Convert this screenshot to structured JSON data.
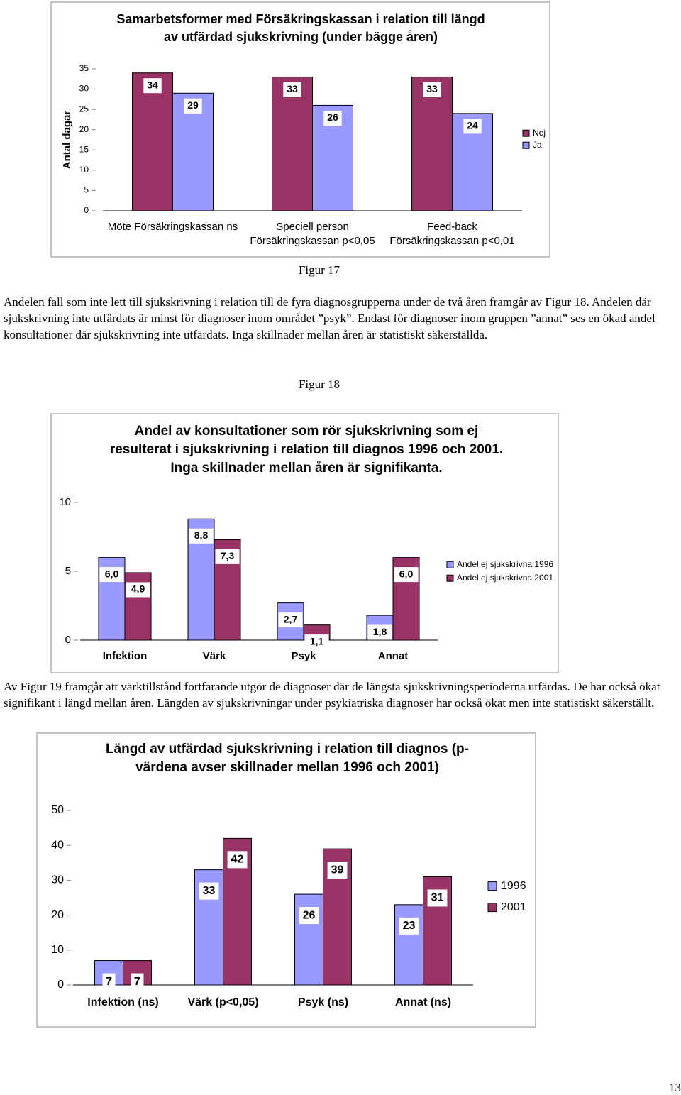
{
  "chart_data": [
    {
      "type": "bar",
      "title": "Samarbetsformer med Försäkringskassan i relation till längd av utfärdad sjukskrivning (under bägge åren)",
      "ylabel": "Antal dagar",
      "categories": [
        "Möte Försäkringskassan ns",
        "Speciell person Försäkringskassan p<0,05",
        "Feed-back Försäkringskassan p<0,01"
      ],
      "series": [
        {
          "name": "Nej",
          "color": "#993366",
          "values": [
            34,
            33,
            33
          ]
        },
        {
          "name": "Ja",
          "color": "#9999ff",
          "values": [
            29,
            26,
            24
          ]
        }
      ],
      "ylim": [
        0,
        35
      ],
      "yticks": [
        0,
        5,
        10,
        15,
        20,
        25,
        30,
        35
      ],
      "legend": "right"
    },
    {
      "type": "bar",
      "title": "Andel av konsultationer som rör sjukskrivning som ej resulterat i sjukskrivning i relation till diagnos 1996 och 2001. Inga skillnader mellan åren är signifikanta.",
      "categories": [
        "Infektion",
        "Värk",
        "Psyk",
        "Annat"
      ],
      "series": [
        {
          "name": "Andel ej sjukskrivna 1996",
          "color": "#9999ff",
          "values": [
            6.0,
            8.8,
            2.7,
            1.8
          ],
          "value_labels": [
            "6,0",
            "8,8",
            "2,7",
            "1,8"
          ]
        },
        {
          "name": "Andel ej sjukskrivna 2001",
          "color": "#993366",
          "values": [
            4.9,
            7.3,
            1.1,
            6.0
          ],
          "value_labels": [
            "4,9",
            "7,3",
            "1,1",
            "6,0"
          ]
        }
      ],
      "ylim": [
        0,
        10
      ],
      "yticks": [
        0,
        5,
        10
      ],
      "legend": "right"
    },
    {
      "type": "bar",
      "title": "Längd av utfärdad sjukskrivning i relation till diagnos (p-värdena avser skillnader mellan 1996 och 2001)",
      "categories": [
        "Infektion (ns)",
        "Värk (p<0,05)",
        "Psyk (ns)",
        "Annat (ns)"
      ],
      "series": [
        {
          "name": "1996",
          "color": "#9999ff",
          "values": [
            7,
            33,
            26,
            23
          ]
        },
        {
          "name": "2001",
          "color": "#993366",
          "values": [
            7,
            42,
            39,
            31
          ]
        }
      ],
      "ylim": [
        0,
        50
      ],
      "yticks": [
        0,
        10,
        20,
        30,
        40,
        50
      ],
      "legend": "right"
    }
  ],
  "captions": [
    "Figur 17",
    "Figur 18"
  ],
  "paragraphs": [
    "Andelen fall som inte lett till sjukskrivning i relation till de fyra diagnosgrupperna under de två åren framgår av Figur 18. Andelen där sjukskrivning inte utfärdats är minst för diagnoser inom området ”psyk”. Endast för diagnoser inom gruppen ”annat” ses en ökad andel konsultationer där sjukskrivning inte utfärdats. Inga skillnader mellan åren är statistiskt säkerställda.",
    "Av Figur 19 framgår att värktillstånd fortfarande utgör de diagnoser där de längsta sjukskrivningsperioderna utfärdas. De har också ökat signifikant i längd mellan åren. Längden av sjukskrivningar under psykiatriska diagnoser har också ökat men inte statistiskt säkerställt."
  ],
  "page_number": "13"
}
